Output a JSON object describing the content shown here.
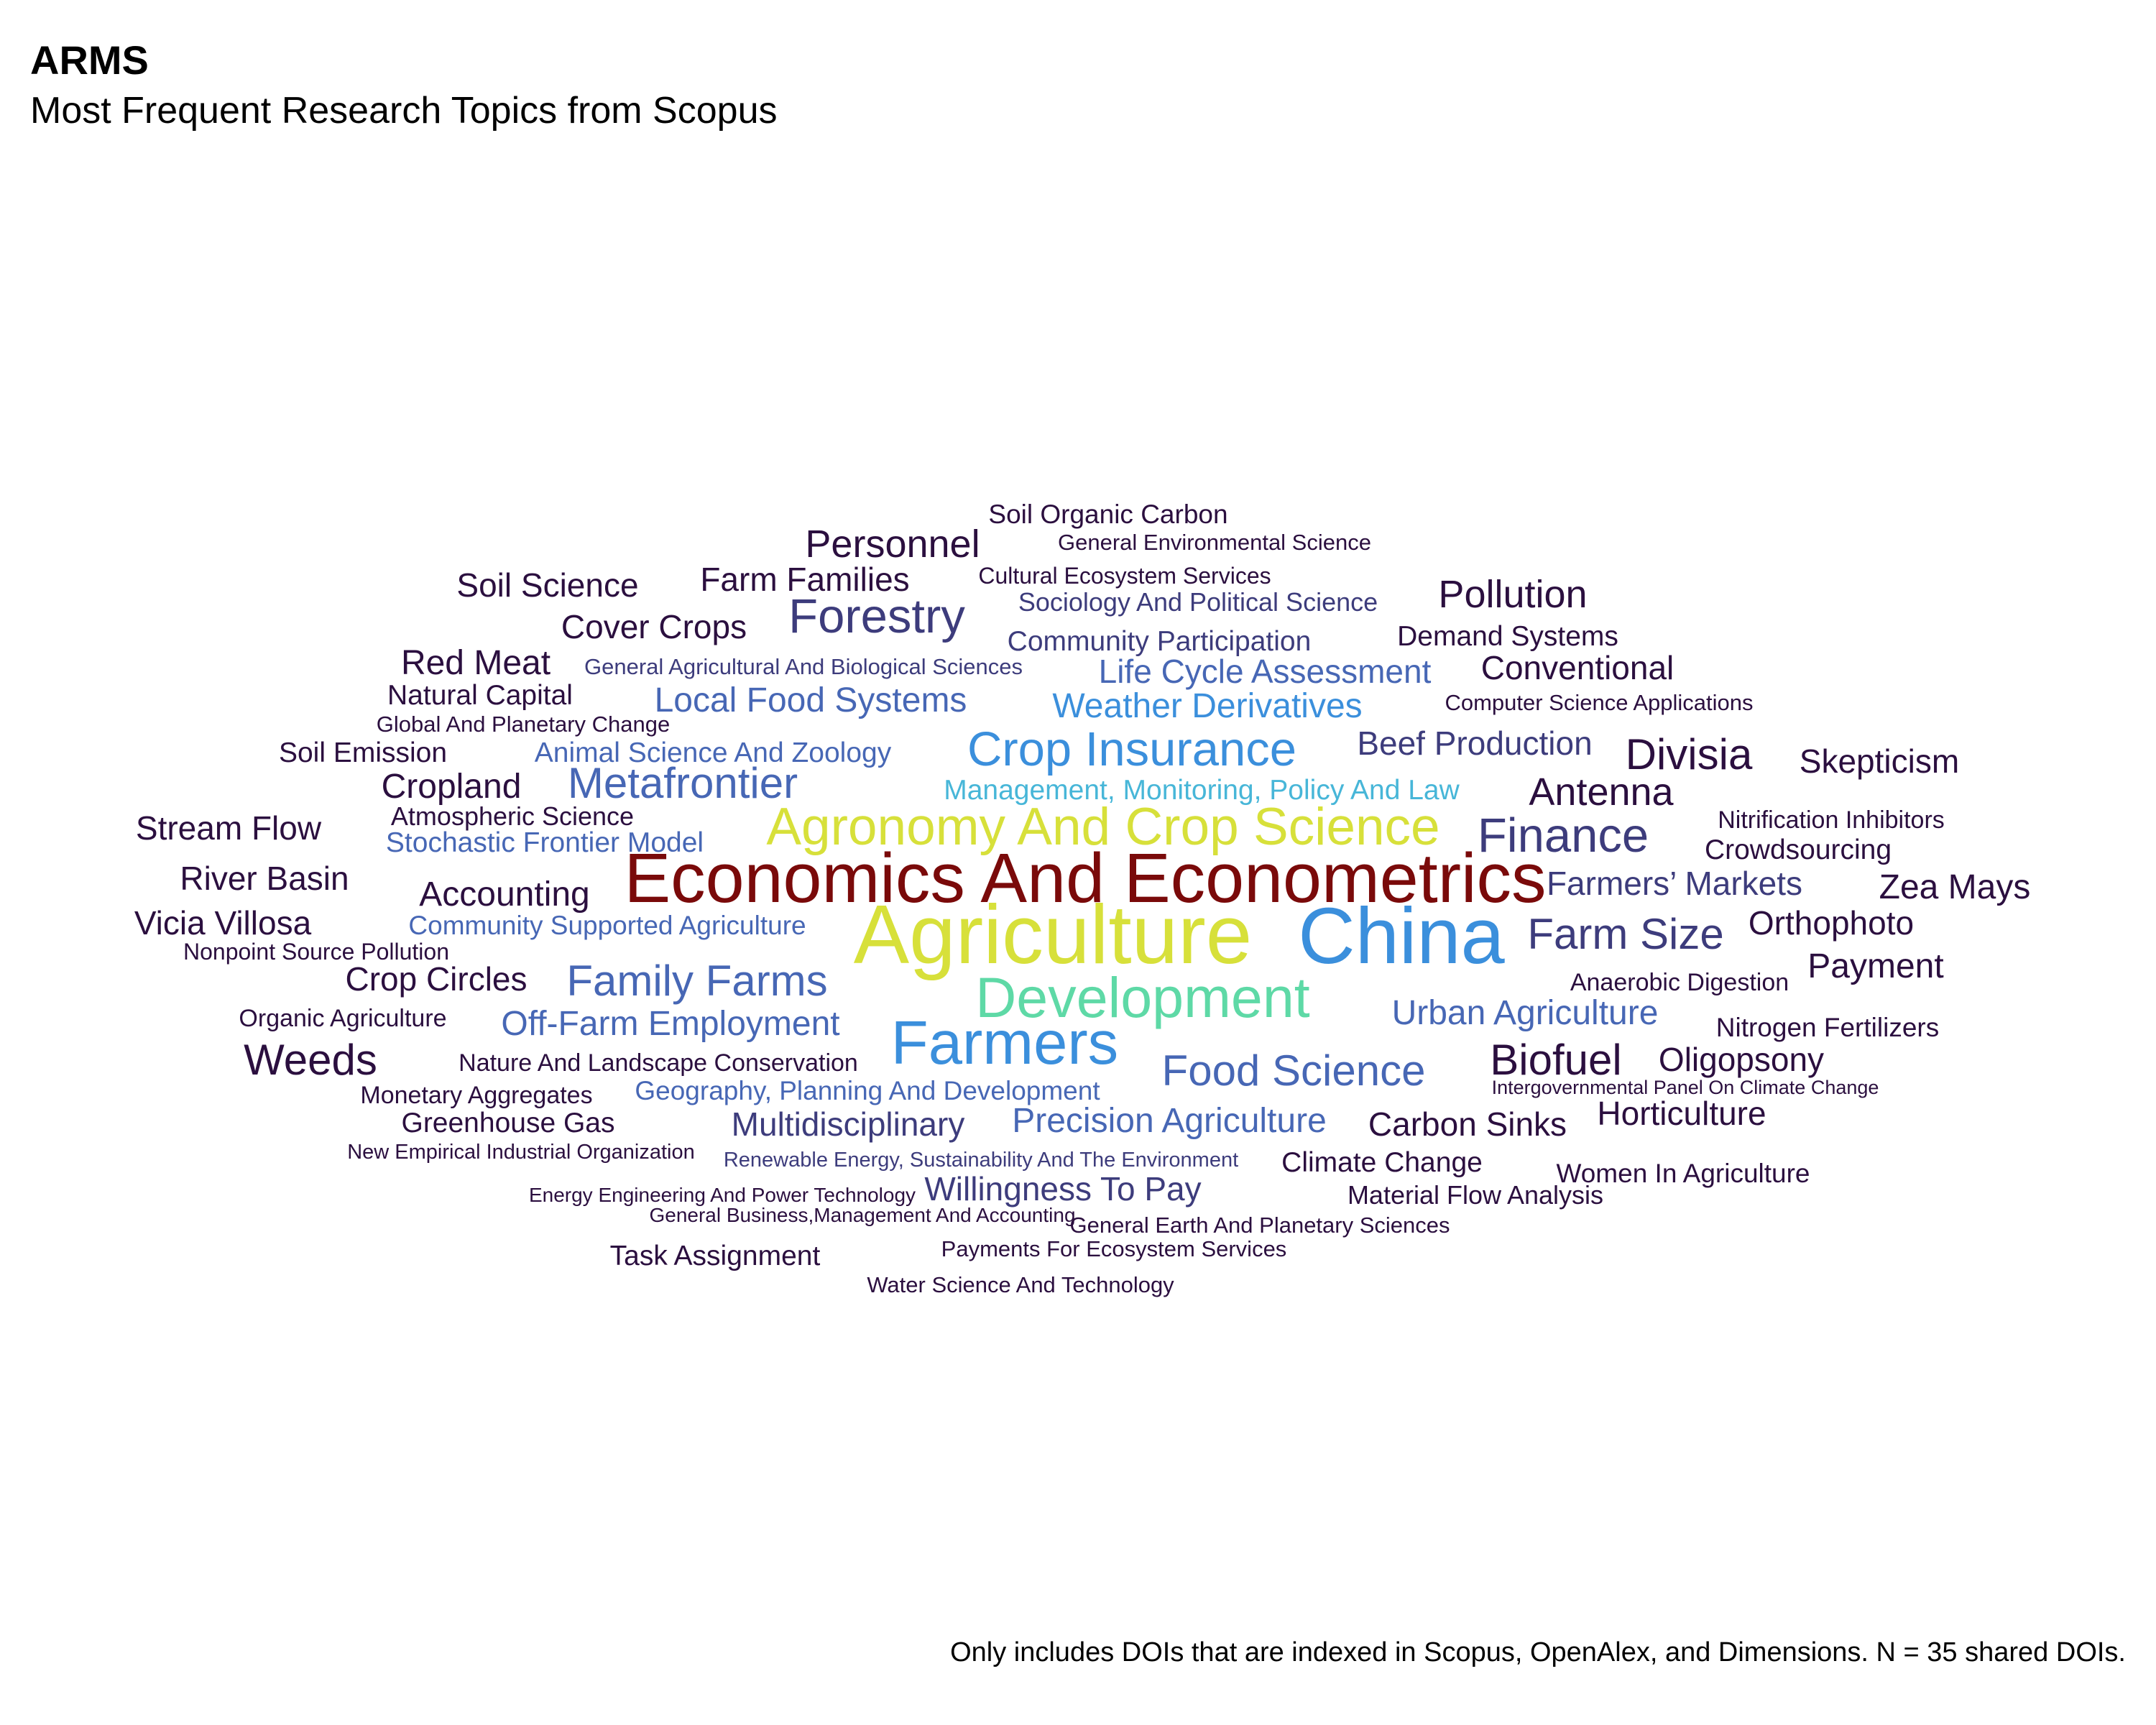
{
  "chart_data": {
    "type": "wordcloud",
    "title": "ARMS",
    "subtitle": "Most Frequent Research Topics from Scopus",
    "caption": "Only includes DOIs that are indexed in Scopus, OpenAlex, and Dimensions. N = 35 shared DOIs.",
    "color_scale": [
      "#2b0f3f",
      "#3d3c7c",
      "#4767b5",
      "#3b8fdc",
      "#47b6d8",
      "#5ed9a6",
      "#d7e03a",
      "#7a0a0a"
    ],
    "words": [
      {
        "text": "Agriculture",
        "weight": 10,
        "color": "#d7e03a"
      },
      {
        "text": "China",
        "weight": 9.5,
        "color": "#3b8fdc"
      },
      {
        "text": "Economics And Econometrics",
        "weight": 8.5,
        "color": "#7a0a0a"
      },
      {
        "text": "Farmers",
        "weight": 7.5,
        "color": "#3b8fdc"
      },
      {
        "text": "Development",
        "weight": 7,
        "color": "#5ed9a6"
      },
      {
        "text": "Agronomy And Crop Science",
        "weight": 6.5,
        "color": "#d7e03a"
      },
      {
        "text": "Crop Insurance",
        "weight": 6,
        "color": "#3b8fdc"
      },
      {
        "text": "Forestry",
        "weight": 6,
        "color": "#3d3c7c"
      },
      {
        "text": "Finance",
        "weight": 6,
        "color": "#3d3c7c"
      },
      {
        "text": "Metafrontier",
        "weight": 5.5,
        "color": "#4767b5"
      },
      {
        "text": "Family Farms",
        "weight": 5.5,
        "color": "#4767b5"
      },
      {
        "text": "Food Science",
        "weight": 5.5,
        "color": "#4767b5"
      },
      {
        "text": "Farm Size",
        "weight": 5.5,
        "color": "#3d3c7c"
      },
      {
        "text": "Biofuel",
        "weight": 5.5,
        "color": "#2b0f3f"
      },
      {
        "text": "Weeds",
        "weight": 5.5,
        "color": "#2b0f3f"
      },
      {
        "text": "Divisia",
        "weight": 5.5,
        "color": "#2b0f3f"
      },
      {
        "text": "Pollution",
        "weight": 5,
        "color": "#2b0f3f"
      },
      {
        "text": "Personnel",
        "weight": 5,
        "color": "#2b0f3f"
      },
      {
        "text": "Antenna",
        "weight": 5,
        "color": "#2b0f3f"
      },
      {
        "text": "Local Food Systems",
        "weight": 4.5,
        "color": "#4767b5"
      },
      {
        "text": "Weather Derivatives",
        "weight": 4.5,
        "color": "#3b8fdc"
      },
      {
        "text": "Urban Agriculture",
        "weight": 4.5,
        "color": "#4767b5"
      },
      {
        "text": "Off-Farm Employment",
        "weight": 4.5,
        "color": "#4767b5"
      },
      {
        "text": "Precision Agriculture",
        "weight": 4.5,
        "color": "#4767b5"
      },
      {
        "text": "Cropland",
        "weight": 4.5,
        "color": "#2b0f3f"
      },
      {
        "text": "Accounting",
        "weight": 4.5,
        "color": "#2b0f3f"
      },
      {
        "text": "Red Meat",
        "weight": 4.5,
        "color": "#2b0f3f"
      },
      {
        "text": "Payment",
        "weight": 4.5,
        "color": "#2b0f3f"
      },
      {
        "text": "Zea Mays",
        "weight": 4.5,
        "color": "#2b0f3f"
      },
      {
        "text": "Orthophoto",
        "weight": 4.3,
        "color": "#2b0f3f"
      },
      {
        "text": "Skepticism",
        "weight": 4.3,
        "color": "#2b0f3f"
      },
      {
        "text": "Oligopsony",
        "weight": 4.3,
        "color": "#2b0f3f"
      },
      {
        "text": "Horticulture",
        "weight": 4.3,
        "color": "#2b0f3f"
      },
      {
        "text": "Multidisciplinary",
        "weight": 4.3,
        "color": "#3d3c7c"
      },
      {
        "text": "Life Cycle Assessment",
        "weight": 4.3,
        "color": "#4767b5"
      },
      {
        "text": "Beef Production",
        "weight": 4.3,
        "color": "#3d3c7c"
      },
      {
        "text": "Farmers’ Markets",
        "weight": 4.3,
        "color": "#3d3c7c"
      },
      {
        "text": "Conventional",
        "weight": 4.3,
        "color": "#2b0f3f"
      },
      {
        "text": "Cover Crops",
        "weight": 4.3,
        "color": "#2b0f3f"
      },
      {
        "text": "Soil Science",
        "weight": 4.3,
        "color": "#2b0f3f"
      },
      {
        "text": "Farm Families",
        "weight": 4.3,
        "color": "#2b0f3f"
      },
      {
        "text": "Crop Circles",
        "weight": 4.3,
        "color": "#2b0f3f"
      },
      {
        "text": "Vicia Villosa",
        "weight": 4.3,
        "color": "#2b0f3f"
      },
      {
        "text": "River Basin",
        "weight": 4.3,
        "color": "#2b0f3f"
      },
      {
        "text": "Stream Flow",
        "weight": 4.3,
        "color": "#2b0f3f"
      },
      {
        "text": "Carbon Sinks",
        "weight": 4.3,
        "color": "#2b0f3f"
      },
      {
        "text": "Willingness To Pay",
        "weight": 4.3,
        "color": "#3d3c7c"
      },
      {
        "text": "Management, Monitoring, Policy And Law",
        "weight": 3.8,
        "color": "#47b6d8"
      },
      {
        "text": "Stochastic Frontier Model",
        "weight": 3.8,
        "color": "#4767b5"
      },
      {
        "text": "Animal Science And Zoology",
        "weight": 3.8,
        "color": "#4767b5"
      },
      {
        "text": "Community Participation",
        "weight": 3.8,
        "color": "#3d3c7c"
      },
      {
        "text": "Sociology And Political Science",
        "weight": 3.5,
        "color": "#3d3c7c"
      },
      {
        "text": "Demand Systems",
        "weight": 3.8,
        "color": "#2b0f3f"
      },
      {
        "text": "Natural Capital",
        "weight": 3.8,
        "color": "#2b0f3f"
      },
      {
        "text": "Soil Emission",
        "weight": 3.8,
        "color": "#2b0f3f"
      },
      {
        "text": "Crowdsourcing",
        "weight": 3.8,
        "color": "#2b0f3f"
      },
      {
        "text": "Community Supported Agriculture",
        "weight": 3.6,
        "color": "#4767b5"
      },
      {
        "text": "Geography, Planning And Development",
        "weight": 3.6,
        "color": "#4767b5"
      },
      {
        "text": "Greenhouse Gas",
        "weight": 3.8,
        "color": "#2b0f3f"
      },
      {
        "text": "Climate Change",
        "weight": 3.8,
        "color": "#2b0f3f"
      },
      {
        "text": "Task Assignment",
        "weight": 3.8,
        "color": "#2b0f3f"
      },
      {
        "text": "Nitrogen Fertilizers",
        "weight": 3.6,
        "color": "#2b0f3f"
      },
      {
        "text": "Women In Agriculture",
        "weight": 3.6,
        "color": "#2b0f3f"
      },
      {
        "text": "Soil Organic Carbon",
        "weight": 3.6,
        "color": "#2b0f3f"
      },
      {
        "text": "Atmospheric Science",
        "weight": 3.5,
        "color": "#2b0f3f"
      },
      {
        "text": "Material Flow Analysis",
        "weight": 3.5,
        "color": "#2b0f3f"
      },
      {
        "text": "Nature And Landscape Conservation",
        "weight": 3.4,
        "color": "#2b0f3f"
      },
      {
        "text": "Monetary Aggregates",
        "weight": 3.4,
        "color": "#2b0f3f"
      },
      {
        "text": "Organic Agriculture",
        "weight": 3.4,
        "color": "#2b0f3f"
      },
      {
        "text": "Nitrification Inhibitors",
        "weight": 3.4,
        "color": "#2b0f3f"
      },
      {
        "text": "Anaerobic Digestion",
        "weight": 3.4,
        "color": "#2b0f3f"
      },
      {
        "text": "Cultural Ecosystem Services",
        "weight": 3.2,
        "color": "#2b0f3f"
      },
      {
        "text": "Nonpoint Source Pollution",
        "weight": 3.2,
        "color": "#2b0f3f"
      },
      {
        "text": "General Agricultural And Biological Sciences",
        "weight": 3.1,
        "color": "#3d3c7c"
      },
      {
        "text": "Global And Planetary Change",
        "weight": 3.1,
        "color": "#2b0f3f"
      },
      {
        "text": "Computer Science Applications",
        "weight": 3.1,
        "color": "#2b0f3f"
      },
      {
        "text": "General Environmental Science",
        "weight": 3.1,
        "color": "#2b0f3f"
      },
      {
        "text": "General Earth And Planetary Sciences",
        "weight": 3.1,
        "color": "#2b0f3f"
      },
      {
        "text": "Payments For Ecosystem Services",
        "weight": 3.1,
        "color": "#2b0f3f"
      },
      {
        "text": "Water Science And Technology",
        "weight": 3.1,
        "color": "#2b0f3f"
      },
      {
        "text": "Renewable Energy, Sustainability And The Environment",
        "weight": 3.0,
        "color": "#3d3c7c"
      },
      {
        "text": "New Empirical Industrial Organization",
        "weight": 3.0,
        "color": "#2b0f3f"
      },
      {
        "text": "Energy Engineering And Power Technology",
        "weight": 2.9,
        "color": "#2b0f3f"
      },
      {
        "text": "General Business,Management And Accounting",
        "weight": 2.9,
        "color": "#2b0f3f"
      },
      {
        "text": "Intergovernmental Panel On Climate Change",
        "weight": 2.8,
        "color": "#2b0f3f"
      }
    ]
  }
}
